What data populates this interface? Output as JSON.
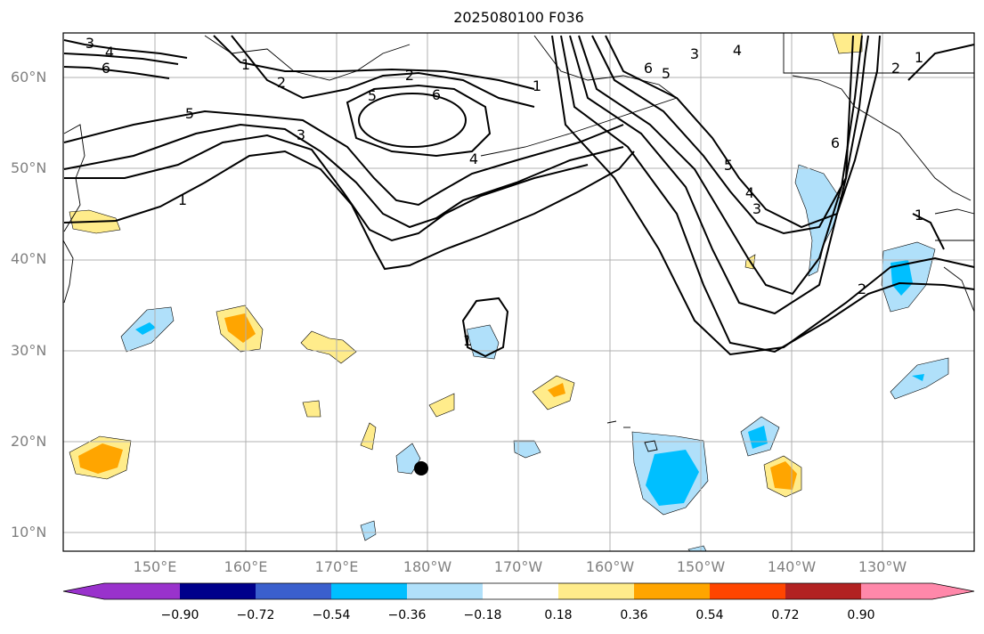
{
  "title": "2025080100 F036",
  "latitude_labels": [
    {
      "label": "60°N"
    },
    {
      "label": "50°N"
    },
    {
      "label": "40°N"
    },
    {
      "label": "30°N"
    },
    {
      "label": "20°N"
    },
    {
      "label": "10°N"
    }
  ],
  "longitude_labels": [
    {
      "label": "150°E"
    },
    {
      "label": "160°E"
    },
    {
      "label": "170°E"
    },
    {
      "label": "180°W"
    },
    {
      "label": "170°W"
    },
    {
      "label": "160°W"
    },
    {
      "label": "150°W"
    },
    {
      "label": "140°W"
    },
    {
      "label": "130°W"
    }
  ],
  "colorbar": {
    "ticks": [
      "−0.90",
      "−0.72",
      "−0.54",
      "−0.36",
      "−0.18",
      "0.18",
      "0.36",
      "0.54",
      "0.72",
      "0.90"
    ],
    "colors": [
      "#9932cc",
      "#00008b",
      "#3a5fcd",
      "#00bfff",
      "#b0e0fa",
      "#ffffff",
      "#ffec8b",
      "#ffa500",
      "#ff4500",
      "#b22222",
      "#ff88aa"
    ]
  },
  "contour_labels": [
    "3",
    "4",
    "6",
    "5",
    "2",
    "1",
    "5",
    "6",
    "2",
    "1",
    "3",
    "4",
    "1",
    "6",
    "5",
    "3",
    "4",
    "5",
    "4",
    "3",
    "6",
    "2",
    "1",
    "2",
    "1",
    "1"
  ],
  "colors": {
    "positive_light": "#ffec8b",
    "positive_mid": "#ffa500",
    "negative_light": "#b0e0fa",
    "negative_mid": "#00bfff",
    "grid": "#b0b0b0"
  }
}
